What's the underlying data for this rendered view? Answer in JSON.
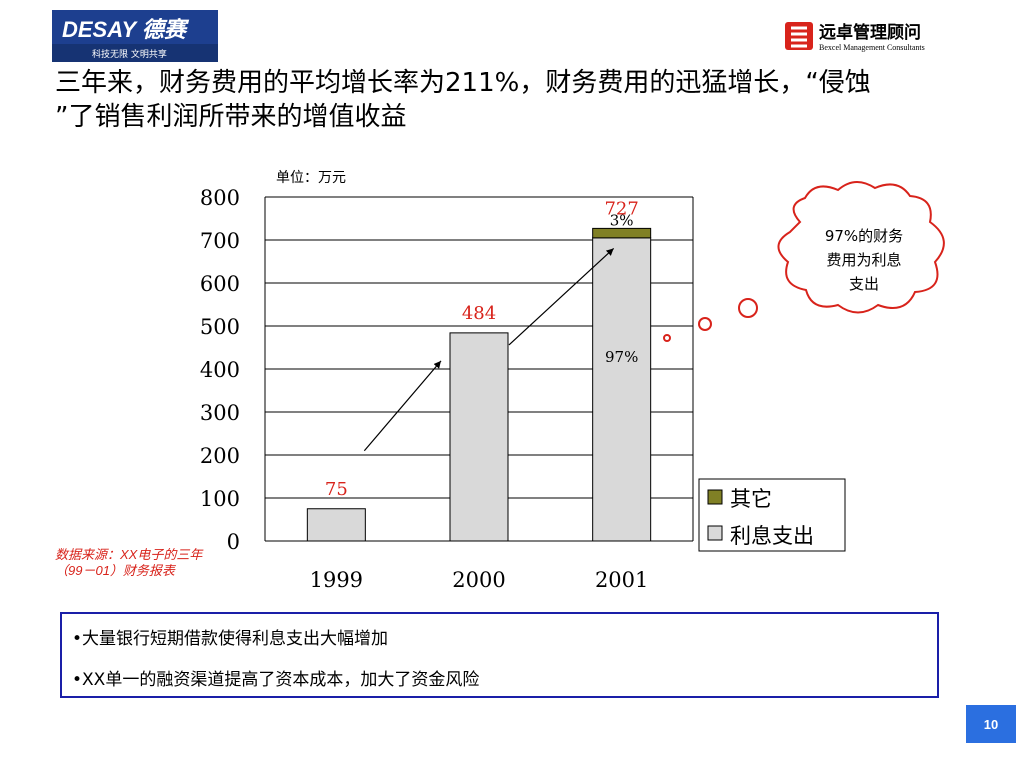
{
  "header": {
    "left_logo_text": "DESAY 德赛",
    "left_logo_slogan": "科技无限  文明共享",
    "right_logo_name": "远卓管理顾问",
    "right_logo_sub": "Bexcel Management Consultants"
  },
  "title": {
    "line1": "三年来，财务费用的平均增长率为211%，财务费用的迅猛增长，“侵蚀",
    "line2": "”了销售利润所带来的增值收益"
  },
  "chart_data": {
    "type": "bar",
    "unit_label": "单位：万元",
    "categories": [
      "1999",
      "2000",
      "2001"
    ],
    "totals": [
      75,
      484,
      727
    ],
    "total_labels": [
      "75",
      "484",
      "727"
    ],
    "series": [
      {
        "name": "利息支出",
        "values": [
          75,
          484,
          705
        ],
        "color": "#d9d9d9"
      },
      {
        "name": "其它",
        "values": [
          0,
          0,
          22
        ],
        "color": "#808025"
      }
    ],
    "segment_labels": {
      "interest_2001": "97%",
      "other_2001": "3%"
    },
    "ylim": [
      0,
      800
    ],
    "yticks": [
      "0",
      "100",
      "200",
      "300",
      "400",
      "500",
      "600",
      "700",
      "800"
    ],
    "grid": true,
    "legend_position": "bottom-right",
    "growth_arrows": true
  },
  "callout": {
    "line1": "97%的财务",
    "line2": "费用为利息",
    "line3": "支出"
  },
  "source_note": {
    "line1": "数据来源：XX电子的三年",
    "line2": "（99－01）财务报表"
  },
  "bullets": [
    "•大量银行短期借款使得利息支出大幅增加",
    "•XX单一的融资渠道提高了资本成本，加大了资金风险"
  ],
  "page_number": "10",
  "colors": {
    "accent_red": "#d8231b",
    "box_blue": "#1a1fa8",
    "page_badge_blue": "#2b6fe0"
  }
}
